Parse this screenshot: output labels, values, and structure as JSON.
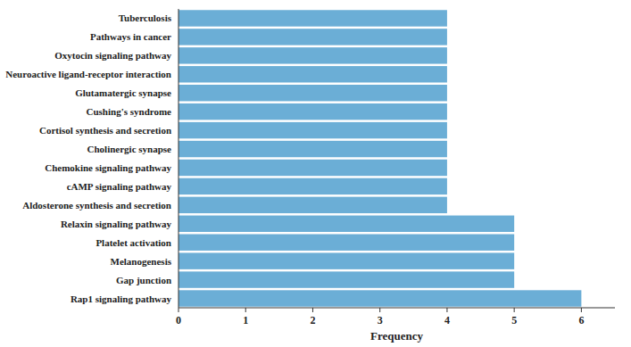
{
  "chart_data": {
    "type": "bar",
    "orientation": "horizontal",
    "categories": [
      "Tuberculosis",
      "Pathways in cancer",
      "Oxytocin signaling pathway",
      "Neuroactive ligand-receptor interaction",
      "Glutamatergic synapse",
      "Cushing's syndrome",
      "Cortisol synthesis and secretion",
      "Cholinergic synapse",
      "Chemokine signaling pathway",
      "cAMP signaling pathway",
      "Aldosterone synthesis and secretion",
      "Relaxin signaling pathway",
      "Platelet activation",
      "Melanogenesis",
      "Gap junction",
      "Rap1 signaling pathway"
    ],
    "values": [
      4,
      4,
      4,
      4,
      4,
      4,
      4,
      4,
      4,
      4,
      4,
      5,
      5,
      5,
      5,
      6
    ],
    "color": "#6baed6",
    "xlabel": "Frequency",
    "xlim": [
      0,
      6.5
    ],
    "xticks": [
      0,
      1,
      2,
      3,
      4,
      5,
      6
    ]
  }
}
